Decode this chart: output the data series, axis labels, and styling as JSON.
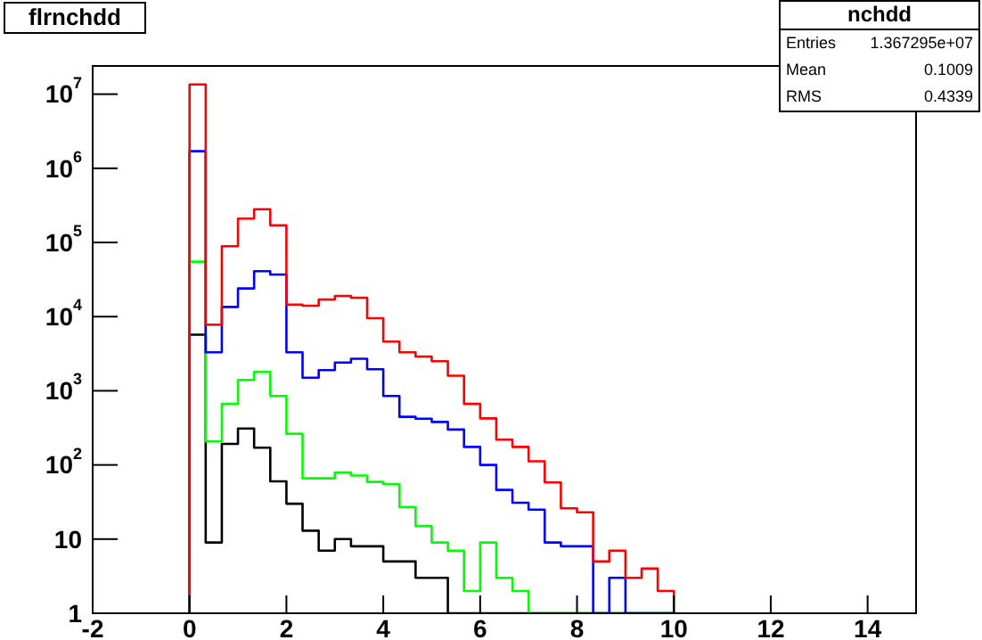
{
  "chart_data": {
    "type": "histogram",
    "title": "flrnchdd",
    "annotations": [
      "nchdd",
      "Entries",
      "1.367295e+07",
      "Mean",
      "0.1009",
      "RMS",
      "0.4339"
    ],
    "bins": [
      0,
      0.3333,
      0.6667,
      1,
      1.3333,
      1.6667,
      2,
      2.3333,
      2.6667,
      3,
      3.3333,
      3.6667,
      4,
      4.3333,
      4.6667,
      5,
      5.3333,
      5.6667,
      6,
      6.3333,
      6.6667,
      7,
      7.3333,
      7.6667,
      8,
      8.3333,
      8.6667,
      9,
      9.3333,
      9.6667,
      10
    ],
    "series": [
      {
        "color": "#ff0000",
        "values": [
          13500000,
          7800,
          89000,
          210000,
          280000,
          170000,
          14500,
          14000,
          17000,
          19000,
          18000,
          9500,
          4600,
          3300,
          2900,
          2500,
          1600,
          665,
          425,
          219,
          175,
          112,
          58,
          26,
          23,
          5,
          7,
          3,
          4,
          2
        ]
      },
      {
        "color": "#0000ff",
        "values": [
          1700000,
          3300,
          13500,
          24000,
          41000,
          37000,
          3300,
          1500,
          1900,
          2400,
          2700,
          1950,
          850,
          445,
          420,
          380,
          300,
          175,
          100,
          46,
          31,
          25,
          9,
          8,
          8,
          null,
          3,
          null,
          null,
          null
        ]
      },
      {
        "color": "#00ff00",
        "values": [
          55000,
          207,
          665,
          1400,
          1800,
          850,
          263,
          66,
          66,
          79,
          72,
          59,
          55,
          27,
          15,
          9,
          7,
          2,
          9,
          3,
          2,
          null,
          null,
          null,
          null,
          null,
          null,
          null,
          null,
          null
        ]
      },
      {
        "color": "#000000",
        "values": [
          5700,
          9,
          192,
          310,
          171,
          60,
          30,
          13,
          7,
          10,
          8,
          8,
          5,
          5,
          3,
          3,
          null,
          null,
          null,
          null,
          null,
          null,
          null,
          null,
          null,
          null,
          null,
          null,
          null,
          null
        ]
      }
    ],
    "log": "y",
    "xlim": [
      -2,
      15
    ],
    "xticks": [
      -2,
      0,
      2,
      4,
      6,
      8,
      10,
      12,
      14
    ],
    "ylim": [
      1,
      24000000
    ],
    "yticks": [
      1,
      10,
      {
        "value": 100,
        "label": "10$^{2}$"
      },
      {
        "value": 1000,
        "label": "10$^{3}$"
      },
      {
        "value": 10000,
        "label": "10$^{4}$"
      },
      {
        "value": 100000,
        "label": "10$^{5}$"
      },
      {
        "value": 1000000,
        "label": "10$^{6}$"
      },
      {
        "value": 10000000,
        "label": "10$^{7}$"
      }
    ],
    "grid": false,
    "legend": false
  }
}
